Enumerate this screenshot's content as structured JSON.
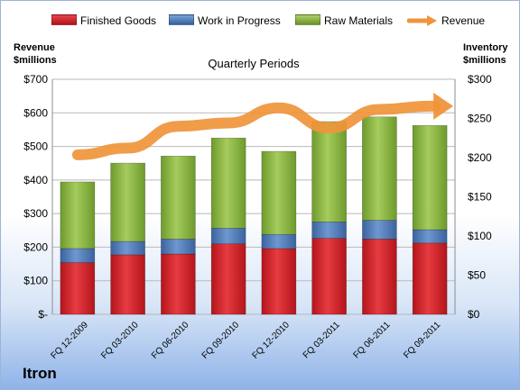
{
  "footer": {
    "company": "Itron"
  },
  "chart_data": {
    "type": "bar",
    "stacked": true,
    "title": "Quarterly Periods",
    "y_left_label": [
      "Revenue",
      "$millions"
    ],
    "y_right_label": [
      "Inventory",
      "$millions"
    ],
    "y_left_ticks": [
      "$-",
      "$100",
      "$200",
      "$300",
      "$400",
      "$500",
      "$600",
      "$700"
    ],
    "y_right_ticks": [
      "$0",
      "$50",
      "$100",
      "$150",
      "$200",
      "$250",
      "$300"
    ],
    "ylim_left": [
      0,
      700
    ],
    "ylim_right": [
      0,
      300
    ],
    "categories": [
      "FQ 12-2009",
      "FQ 03-2010",
      "FQ 06-2010",
      "FQ 09-2010",
      "FQ 12-2010",
      "FQ 03-2011",
      "FQ 06-2011",
      "FQ 09-2011"
    ],
    "series": [
      {
        "name": "Finished Goods",
        "axis": "right",
        "color": "#d82027",
        "values": [
          66,
          76,
          77,
          90,
          84,
          97,
          96,
          91
        ]
      },
      {
        "name": "Work in Progress",
        "axis": "right",
        "color": "#4f81bd",
        "values": [
          18,
          17,
          19,
          20,
          18,
          21,
          24,
          17
        ]
      },
      {
        "name": "Raw Materials",
        "axis": "right",
        "color": "#8db63c",
        "values": [
          85,
          100,
          106,
          115,
          106,
          128,
          132,
          133
        ]
      },
      {
        "name": "Revenue",
        "axis": "left",
        "type": "line",
        "color": "#f0943a",
        "values": [
          475,
          495,
          560,
          570,
          615,
          555,
          610,
          620
        ]
      }
    ],
    "legend_position": "top",
    "grid": true
  }
}
